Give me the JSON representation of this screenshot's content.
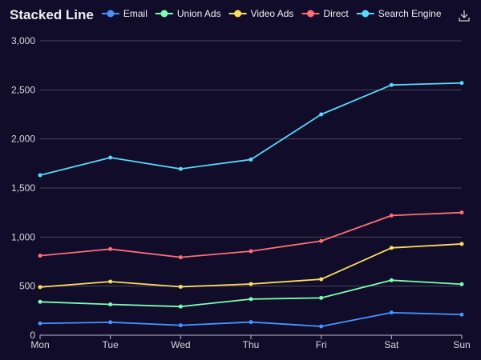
{
  "colors": {
    "background": "#100c2a",
    "text": "#eeeeee",
    "axis_text": "#d8d8d8",
    "grid": "#484753",
    "axis_line": "#b9b8ce"
  },
  "toolbar": {
    "save_icon": "download-icon"
  },
  "chart_data": {
    "type": "line",
    "title": "Stacked Line",
    "stacked": true,
    "categories": [
      "Mon",
      "Tue",
      "Wed",
      "Thu",
      "Fri",
      "Sat",
      "Sun"
    ],
    "series": [
      {
        "name": "Email",
        "color": "#4992ff",
        "values": [
          120,
          132,
          101,
          134,
          90,
          230,
          210
        ]
      },
      {
        "name": "Union Ads",
        "color": "#7cffb2",
        "values": [
          220,
          182,
          191,
          234,
          290,
          330,
          310
        ]
      },
      {
        "name": "Video Ads",
        "color": "#fddd60",
        "values": [
          150,
          232,
          201,
          154,
          190,
          330,
          410
        ]
      },
      {
        "name": "Direct",
        "color": "#ff6e76",
        "values": [
          320,
          332,
          301,
          334,
          390,
          330,
          320
        ]
      },
      {
        "name": "Search Engine",
        "color": "#58d9f9",
        "values": [
          820,
          932,
          901,
          934,
          1290,
          1330,
          1320
        ]
      }
    ],
    "ylim": [
      0,
      3000
    ],
    "yticks": [
      "0",
      "500",
      "1,000",
      "1,500",
      "2,000",
      "2,500",
      "3,000"
    ],
    "xlabel": "",
    "ylabel": "",
    "grid": true,
    "legend_position": "top"
  }
}
